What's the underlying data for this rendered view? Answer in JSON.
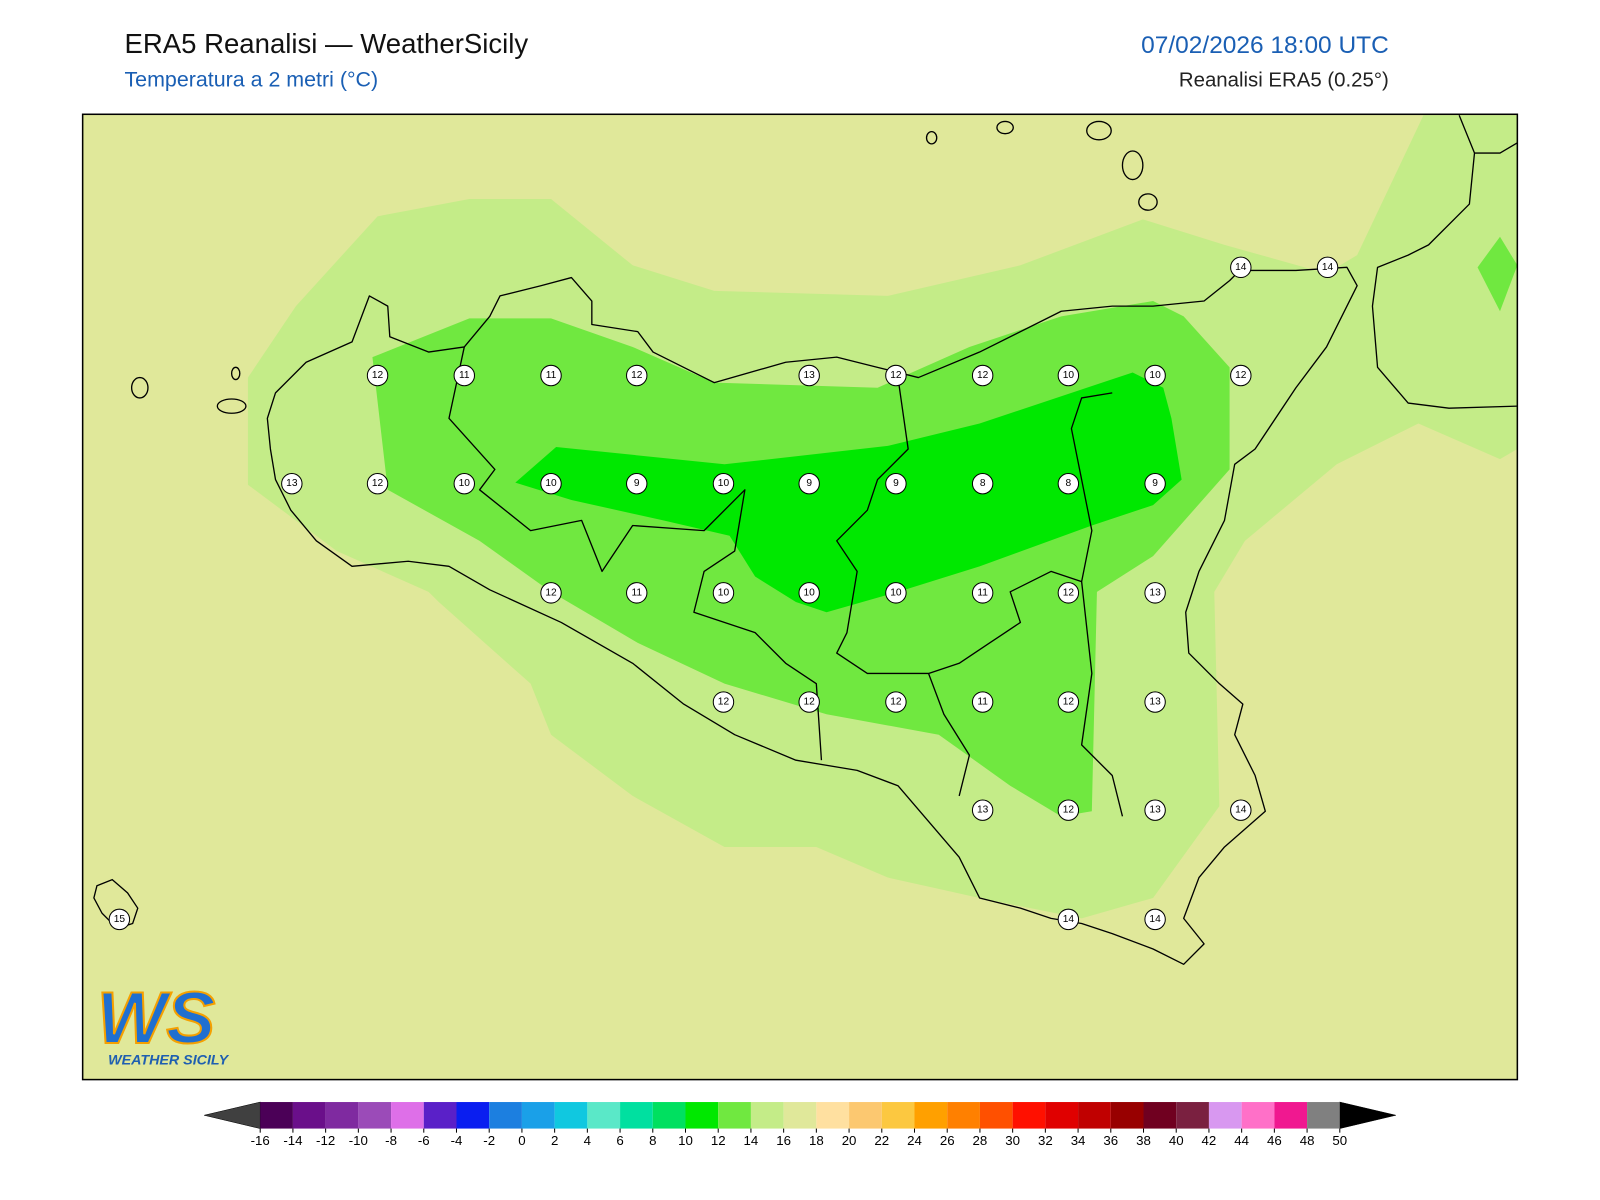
{
  "header": {
    "title": "ERA5 Reanalisi — WeatherSicily",
    "subtitle": "Temperatura a 2 metri (°C)",
    "datetime": "07/02/2026 18:00 UTC",
    "source": "Reanalisi ERA5 (0.25°)"
  },
  "stations": [
    12,
    11,
    11,
    12,
    13,
    12,
    12,
    10,
    10,
    12,
    14,
    14,
    13,
    12,
    10,
    10,
    9,
    10,
    9,
    9,
    8,
    8,
    9,
    12,
    11,
    10,
    10,
    10,
    11,
    12,
    13,
    12,
    12,
    12,
    11,
    12,
    13,
    13,
    12,
    13,
    14,
    15,
    14,
    14
  ],
  "logo": {
    "mark": "WS",
    "name": "WEATHER SICILY"
  },
  "colorbar": {
    "ticks": [
      -16,
      -14,
      -12,
      -10,
      -8,
      -6,
      -4,
      -2,
      0,
      2,
      4,
      6,
      8,
      10,
      12,
      14,
      16,
      18,
      20,
      22,
      24,
      26,
      28,
      30,
      32,
      34,
      36,
      38,
      40,
      42,
      44,
      46,
      48,
      50
    ],
    "colors": [
      "#4b0057",
      "#6a0f8a",
      "#7f2aa0",
      "#9b4bb8",
      "#de6fe8",
      "#5a20c8",
      "#0a1ef0",
      "#1c7fe0",
      "#1aa0e8",
      "#10c8e0",
      "#5ae8c8",
      "#00e0a0",
      "#00e060",
      "#00e800",
      "#70e840",
      "#c4ec88",
      "#e0e89a",
      "#ffe0a0",
      "#fcc870",
      "#fcc840",
      "#ffa000",
      "#ff8000",
      "#ff5000",
      "#ff1000",
      "#e00000",
      "#c00000",
      "#980000",
      "#700020",
      "#7a2040",
      "#d898f0",
      "#ff70c8",
      "#f01890",
      "#808080"
    ],
    "under": "#404040",
    "over": "#000000"
  }
}
